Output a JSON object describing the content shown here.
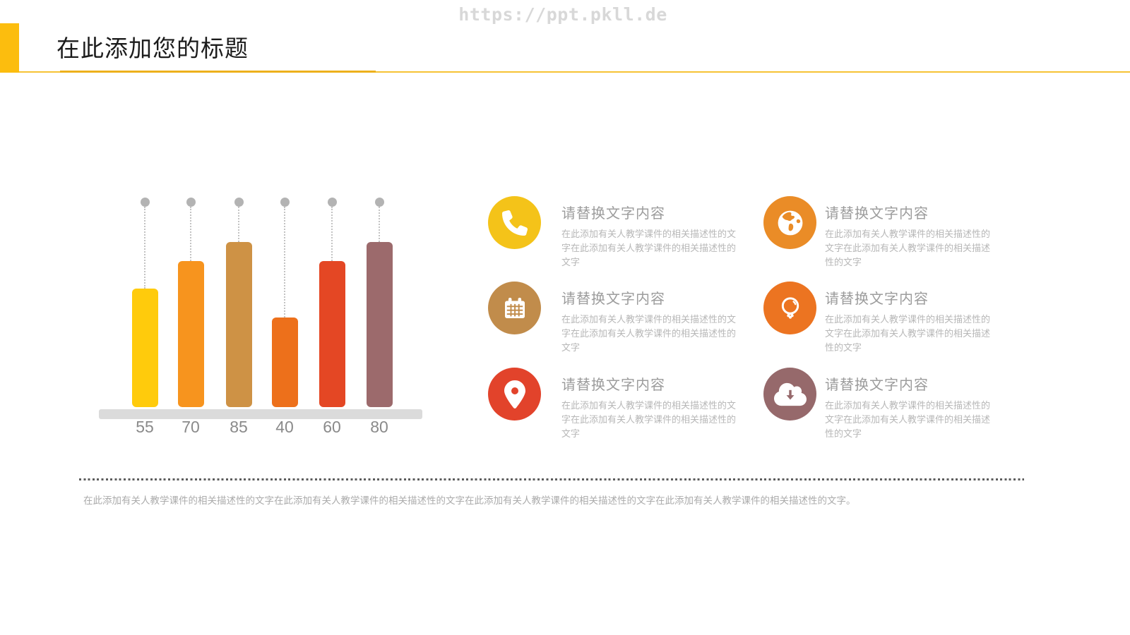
{
  "watermark": "https://ppt.pkll.de",
  "header": {
    "title": "在此添加您的标题",
    "accent_color": "#fcbd0e",
    "rule_color": "#f6c335"
  },
  "chart_data": {
    "type": "bar",
    "categories": [
      "55",
      "70",
      "85",
      "40",
      "60",
      "80"
    ],
    "values": [
      55,
      70,
      85,
      40,
      60,
      80
    ],
    "bar_colors": [
      "#ffcb0c",
      "#f7941e",
      "#ce9245",
      "#ed701b",
      "#e44724",
      "#9c6a6c"
    ],
    "marker_color": "#b3b3b3",
    "baseline_color": "#dbdbdb",
    "title": "",
    "xlabel": "",
    "ylabel": "",
    "ylim": [
      0,
      100
    ],
    "grid": false,
    "legend": false,
    "notes": "free-standing PPT bar chart; value labels shown under each bar; gray dots with dotted drop-lines above each bar"
  },
  "features": [
    {
      "icon": "phone-icon",
      "color": "#f4c319",
      "title": "请替换文字内容",
      "desc": "在此添加有关人教学课件的相关描述性的文字在此添加有关人教学课件的相关描述性的文字"
    },
    {
      "icon": "globe-icon",
      "color": "#ea8c27",
      "title": "请替换文字内容",
      "desc": "在此添加有关人教学课件的相关描述性的文字在此添加有关人教学课件的相关描述性的文字"
    },
    {
      "icon": "calendar-icon",
      "color": "#c18c4b",
      "title": "请替换文字内容",
      "desc": "在此添加有关人教学课件的相关描述性的文字在此添加有关人教学课件的相关描述性的文字"
    },
    {
      "icon": "lightbulb-icon",
      "color": "#ec7421",
      "title": "请替换文字内容",
      "desc": "在此添加有关人教学课件的相关描述性的文字在此添加有关人教学课件的相关描述性的文字"
    },
    {
      "icon": "location-pin-icon",
      "color": "#e2432b",
      "title": "请替换文字内容",
      "desc": "在此添加有关人教学课件的相关描述性的文字在此添加有关人教学课件的相关描述性的文字"
    },
    {
      "icon": "cloud-download-icon",
      "color": "#96696b",
      "title": "请替换文字内容",
      "desc": "在此添加有关人教学课件的相关描述性的文字在此添加有关人教学课件的相关描述性的文字"
    }
  ],
  "footer": {
    "text": "在此添加有关人教学课件的相关描述性的文字在此添加有关人教学课件的相关描述性的文字在此添加有关人教学课件的相关描述性的文字在此添加有关人教学课件的相关描述性的文字。"
  }
}
